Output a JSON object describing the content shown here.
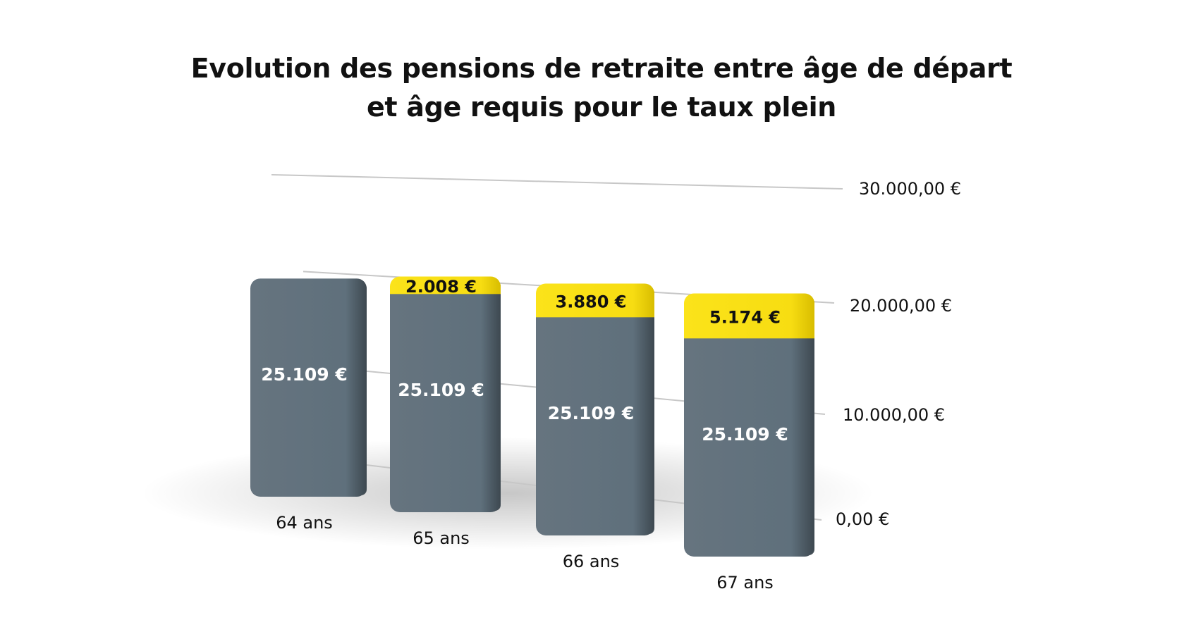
{
  "title_line1": "Evolution des pensions de retraite entre âge de départ",
  "title_line2": "et âge requis pour le taux plein",
  "colors": {
    "base": "#5f707c",
    "increase": "#f7dd12",
    "grid": "#c7c7c7"
  },
  "chart_data": {
    "type": "bar",
    "stacked": true,
    "view": "3d",
    "title": "Evolution des pensions de retraite entre âge de départ et âge requis pour le taux plein",
    "categories": [
      "64 ans",
      "65 ans",
      "66 ans",
      "67 ans"
    ],
    "series": [
      {
        "values": [
          25109,
          25109,
          25109,
          25109
        ],
        "labels": [
          "25.109 €",
          "25.109 €",
          "25.109 €",
          "25.109 €"
        ]
      },
      {
        "values": [
          0,
          2008,
          3880,
          5174
        ],
        "labels": [
          "",
          "2.008 €",
          "3.880 €",
          "5.174 €"
        ]
      }
    ],
    "ylim": [
      0,
      30000
    ],
    "yticks": [
      0,
      10000,
      20000,
      30000
    ],
    "ytick_labels": [
      "0,00 €",
      "10.000,00 €",
      "20.000,00 €",
      "30.000,00 €"
    ],
    "y_axis_position": "right",
    "grid": true,
    "legend": "none"
  }
}
